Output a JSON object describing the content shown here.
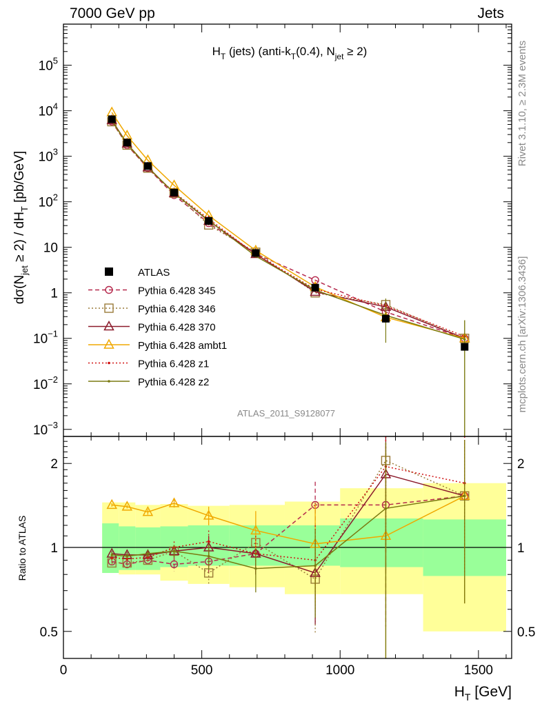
{
  "header": {
    "left": "7000 GeV pp",
    "right": "Jets"
  },
  "side_labels": {
    "rivet": "Rivet 3.1.10, ≥ 2.3M events",
    "mcplots": "mcplots.cern.ch [arXiv:1306.3436]"
  },
  "chart_data": {
    "type": "line",
    "title_parts": {
      "main": "H",
      "sub1": "T",
      "mid": " (jets) (anti-k",
      "sub2": "T",
      "mid2": "(0.4), N",
      "sub3": "jet",
      "end": " ≥ 2)"
    },
    "watermark": "ATLAS_2011_S9128077",
    "x": [
      175,
      230,
      305,
      400,
      525,
      695,
      910,
      1165,
      1450
    ],
    "xlim": [
      0,
      1620
    ],
    "xlabel": {
      "main": "H",
      "sub": "T",
      "unit": " [GeV]"
    },
    "xticks": [
      0,
      500,
      1000,
      1500
    ],
    "main_panel": {
      "scale": "log",
      "ylim": [
        0.0007,
        800000
      ],
      "ylabel": "dσ(N_jet ≥ 2) / dH_T [pb/GeV]",
      "yticks": [
        {
          "value": 0.001,
          "base": "10",
          "exp": "−3"
        },
        {
          "value": 0.01,
          "base": "10",
          "exp": "−2"
        },
        {
          "value": 0.1,
          "base": "10",
          "exp": "−1"
        },
        {
          "value": 1,
          "base": "1",
          "exp": ""
        },
        {
          "value": 10,
          "base": "10",
          "exp": ""
        },
        {
          "value": 100,
          "base": "10",
          "exp": "2"
        },
        {
          "value": 1000,
          "base": "10",
          "exp": "3"
        },
        {
          "value": 10000,
          "base": "10",
          "exp": "4"
        },
        {
          "value": 100000,
          "base": "10",
          "exp": "5"
        }
      ]
    },
    "ratio_panel": {
      "scale": "log",
      "ylim": [
        0.4,
        2.5
      ],
      "ylabel": "Ratio to ATLAS",
      "yticks": [
        0.5,
        1,
        2
      ],
      "band_edges": [
        140,
        200,
        260,
        350,
        450,
        600,
        800,
        1000,
        1300,
        1600
      ],
      "band_inner": [
        [
          0.81,
          1.22
        ],
        [
          0.83,
          1.19
        ],
        [
          0.83,
          1.18
        ],
        [
          0.85,
          1.19
        ],
        [
          0.86,
          1.2
        ],
        [
          0.86,
          1.2
        ],
        [
          0.86,
          1.2
        ],
        [
          0.85,
          1.27
        ],
        [
          0.79,
          1.26
        ]
      ],
      "band_outer": [
        [
          0.82,
          1.45
        ],
        [
          0.8,
          1.45
        ],
        [
          0.8,
          1.42
        ],
        [
          0.76,
          1.43
        ],
        [
          0.74,
          1.41
        ],
        [
          0.72,
          1.42
        ],
        [
          0.68,
          1.46
        ],
        [
          0.68,
          1.63
        ],
        [
          0.5,
          1.7
        ]
      ]
    },
    "data_series": {
      "name": "ATLAS",
      "values": [
        6500,
        2000,
        610,
        160,
        38,
        7.5,
        1.3,
        0.27,
        0.065
      ]
    },
    "series": [
      {
        "name": "Pythia 6.428 345",
        "color": "#b5284c",
        "dash": "6,4",
        "marker": "circle",
        "values": [
          5800,
          1750,
          550,
          140,
          34,
          7.2,
          1.9,
          0.38,
          0.1
        ],
        "ratio": [
          0.89,
          0.87,
          0.9,
          0.87,
          0.89,
          0.95,
          1.42,
          1.42,
          1.53
        ],
        "ratio_err": [
          0.02,
          0.02,
          0.03,
          0.05,
          0.1,
          0.15,
          0.3,
          0.9,
          0.9
        ]
      },
      {
        "name": "Pythia 6.428 346",
        "color": "#9a7a38",
        "dash": "2,3",
        "marker": "square",
        "values": [
          5750,
          1760,
          550,
          155,
          31,
          7.8,
          1.0,
          0.55,
          0.1
        ],
        "ratio": [
          0.88,
          0.88,
          0.9,
          0.97,
          0.81,
          1.04,
          0.77,
          2.05,
          1.53
        ],
        "ratio_err": [
          0.02,
          0.02,
          0.03,
          0.05,
          0.08,
          0.15,
          0.28,
          1.0,
          0.9
        ]
      },
      {
        "name": "Pythia 6.428 370",
        "color": "#8b1a2b",
        "dash": "",
        "marker": "triangle",
        "values": [
          6200,
          1900,
          570,
          155,
          38,
          7.1,
          1.05,
          0.49,
          0.1
        ],
        "ratio": [
          0.95,
          0.94,
          0.94,
          0.97,
          1.0,
          0.95,
          0.81,
          1.83,
          1.53
        ],
        "ratio_err": [
          0.02,
          0.02,
          0.03,
          0.05,
          0.1,
          0.15,
          0.28,
          1.0,
          0.9
        ]
      },
      {
        "name": "Pythia 6.428 ambt1",
        "color": "#f0a800",
        "dash": "",
        "marker": "triangle",
        "values": [
          9200,
          2850,
          820,
          230,
          50,
          8.5,
          1.35,
          0.29,
          0.1
        ],
        "ratio": [
          1.42,
          1.4,
          1.34,
          1.44,
          1.3,
          1.15,
          1.03,
          1.1,
          1.53
        ],
        "ratio_err": [
          0.02,
          0.02,
          0.03,
          0.05,
          0.1,
          0.2,
          0.4,
          1.1,
          0.9
        ]
      },
      {
        "name": "Pythia 6.428 z1",
        "color": "#d01010",
        "dash": "2,3",
        "marker": "dot",
        "values": [
          6000,
          1850,
          560,
          160,
          42,
          7.0,
          1.2,
          0.52,
          0.11
        ],
        "ratio": [
          0.92,
          0.91,
          0.92,
          1.0,
          1.05,
          0.95,
          0.9,
          1.95,
          1.7
        ],
        "ratio_err": [
          0.02,
          0.02,
          0.03,
          0.05,
          0.1,
          0.15,
          0.3,
          1.0,
          0.9
        ]
      },
      {
        "name": "Pythia 6.428 z2",
        "color": "#7a7a10",
        "dash": "",
        "marker": "dot",
        "values": [
          6100,
          1880,
          580,
          155,
          39,
          6.4,
          1.15,
          0.32,
          0.095
        ],
        "ratio": [
          0.94,
          0.93,
          0.95,
          0.97,
          0.93,
          0.84,
          0.86,
          1.38,
          1.53
        ],
        "ratio_err": [
          0.02,
          0.02,
          0.03,
          0.05,
          0.1,
          0.15,
          0.3,
          1.0,
          0.9
        ]
      }
    ]
  }
}
